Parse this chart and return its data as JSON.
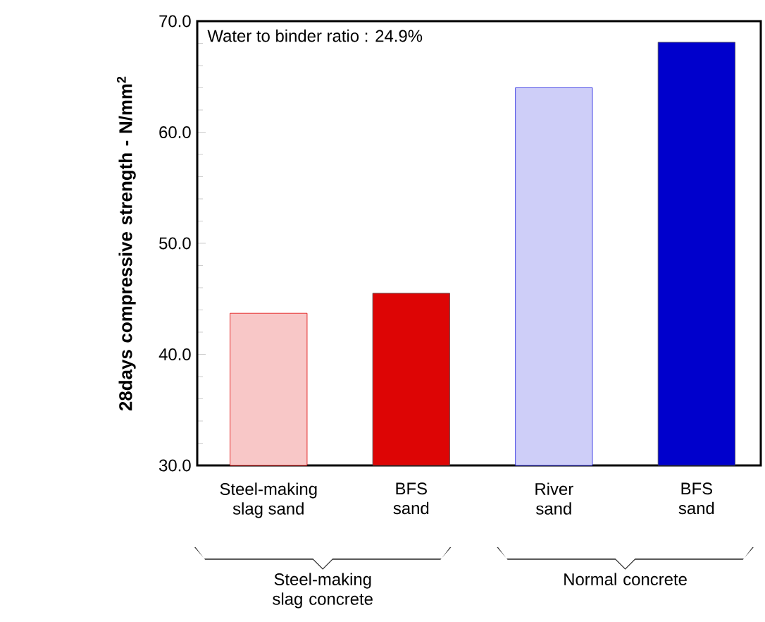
{
  "chart_data": {
    "type": "bar",
    "ylabel": "28days compressive strength - N/mm$^{2}$",
    "categories": [
      "Steel-making slag sand",
      "BFS sand",
      "River sand",
      "BFS sand"
    ],
    "values": [
      43.7,
      45.5,
      64.0,
      68.1
    ],
    "colors": [
      "#e00000",
      "#dd0505",
      "#2020e0",
      "#0000cc"
    ],
    "ylim": [
      30,
      70
    ],
    "yticks": [
      {
        "value": 30,
        "label": "30.0"
      },
      {
        "value": 40,
        "label": "40.0"
      },
      {
        "value": 50,
        "label": "50.0"
      },
      {
        "value": 60,
        "label": "60.0"
      },
      {
        "value": 70,
        "label": "70.0"
      }
    ],
    "annotations": [
      "Water to binder ratio : 24.9%",
      "Steel-making slag concrete",
      "Normal concrete"
    ]
  }
}
